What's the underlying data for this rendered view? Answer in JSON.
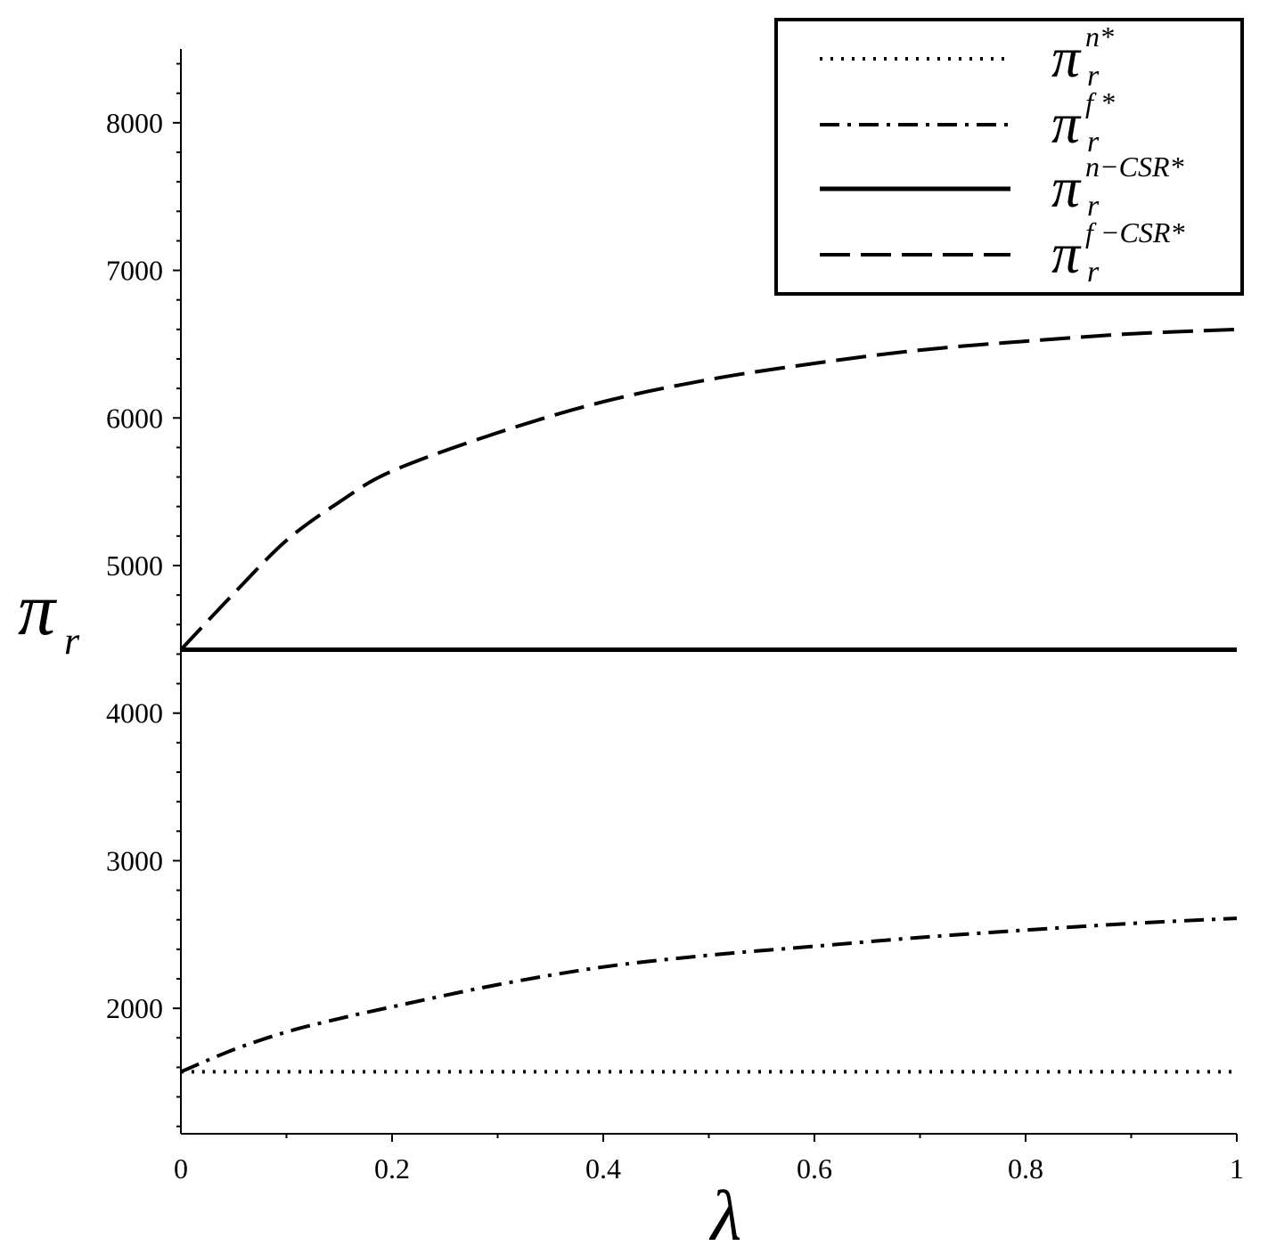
{
  "chart_data": {
    "type": "line",
    "xlabel": "λ",
    "ylabel": "π",
    "ylabel_sub": "r",
    "xlim": [
      0,
      1
    ],
    "ylim": [
      1150,
      8500
    ],
    "x_ticks": [
      0,
      0.2,
      0.4,
      0.6,
      0.8,
      1
    ],
    "x_tick_labels": [
      "0",
      "0.2",
      "0.4",
      "0.6",
      "0.8",
      "1"
    ],
    "y_ticks": [
      2000,
      3000,
      4000,
      5000,
      6000,
      7000,
      8000
    ],
    "y_tick_labels": [
      "2000",
      "3000",
      "4000",
      "5000",
      "6000",
      "7000",
      "8000"
    ],
    "grid": false,
    "legend_position": "top-right",
    "series": [
      {
        "key": "pi_n",
        "name": "π",
        "sub": "r",
        "sup": "n*",
        "style": "dotted",
        "x": [
          0,
          0.2,
          0.4,
          0.6,
          0.8,
          1
        ],
        "y": [
          1570,
          1570,
          1570,
          1570,
          1570,
          1570
        ]
      },
      {
        "key": "pi_f",
        "name": "π",
        "sub": "r",
        "sup": "f *",
        "style": "dash-dot",
        "x": [
          0,
          0.05,
          0.1,
          0.15,
          0.2,
          0.3,
          0.4,
          0.5,
          0.6,
          0.7,
          0.8,
          0.9,
          1
        ],
        "y": [
          1570,
          1720,
          1840,
          1930,
          2010,
          2160,
          2280,
          2360,
          2420,
          2480,
          2530,
          2575,
          2610
        ]
      },
      {
        "key": "pi_ncsr",
        "name": "π",
        "sub": "r",
        "sup": "n−CSR*",
        "style": "solid",
        "x": [
          0,
          0.2,
          0.4,
          0.6,
          0.8,
          1
        ],
        "y": [
          4430,
          4430,
          4430,
          4430,
          4430,
          4430
        ]
      },
      {
        "key": "pi_fcsr",
        "name": "π",
        "sub": "r",
        "sup": "f −CSR*",
        "style": "dashed",
        "x": [
          0,
          0.05,
          0.1,
          0.15,
          0.2,
          0.3,
          0.4,
          0.5,
          0.6,
          0.7,
          0.8,
          0.9,
          1
        ],
        "y": [
          4430,
          4810,
          5170,
          5430,
          5640,
          5900,
          6110,
          6260,
          6370,
          6460,
          6520,
          6570,
          6600
        ]
      }
    ]
  }
}
